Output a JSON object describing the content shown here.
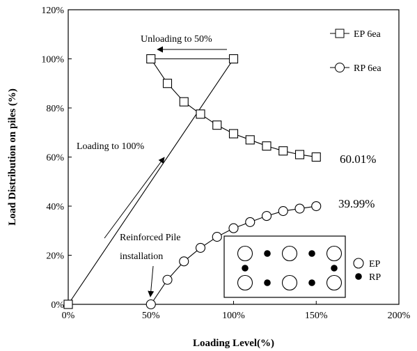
{
  "chart_data": {
    "type": "line",
    "xlabel": "Loading Level(%)",
    "ylabel": "Load Distribution on piles (%)",
    "xlim": [
      0,
      200
    ],
    "ylim": [
      0,
      120
    ],
    "x_ticks": [
      "0%",
      "50%",
      "100%",
      "150%",
      "200%"
    ],
    "y_ticks": [
      "0%",
      "20%",
      "40%",
      "60%",
      "80%",
      "100%",
      "120%"
    ],
    "grid": false,
    "legend_position": "top-right",
    "series": [
      {
        "name": "EP 6ea",
        "marker": "square",
        "x": [
          0,
          100,
          50,
          60,
          70,
          80,
          90,
          100,
          110,
          120,
          130,
          140,
          150
        ],
        "y": [
          0,
          100,
          100,
          90,
          82.5,
          77.5,
          73,
          69.5,
          67,
          64.5,
          62.5,
          61,
          60.01
        ]
      },
      {
        "name": "RP 6ea",
        "marker": "circle",
        "x": [
          50,
          60,
          70,
          80,
          90,
          100,
          110,
          120,
          130,
          140,
          150
        ],
        "y": [
          0,
          10,
          17.5,
          23,
          27.5,
          31,
          33.5,
          36,
          38,
          39,
          39.99
        ]
      }
    ],
    "annotations": [
      {
        "id": "unloading",
        "text": "Unloading  to 50%"
      },
      {
        "id": "loading",
        "text": "Loading to 100%"
      },
      {
        "id": "reinforced_1",
        "text": "Reinforced  Pile"
      },
      {
        "id": "reinforced_2",
        "text": "installation"
      },
      {
        "id": "ep_end",
        "text": "60.01%"
      },
      {
        "id": "rp_end",
        "text": "39.99%"
      }
    ],
    "inset": {
      "legend": [
        {
          "symbol": "open-circle",
          "text": "EP"
        },
        {
          "symbol": "filled-circle",
          "text": "RP"
        }
      ]
    }
  }
}
